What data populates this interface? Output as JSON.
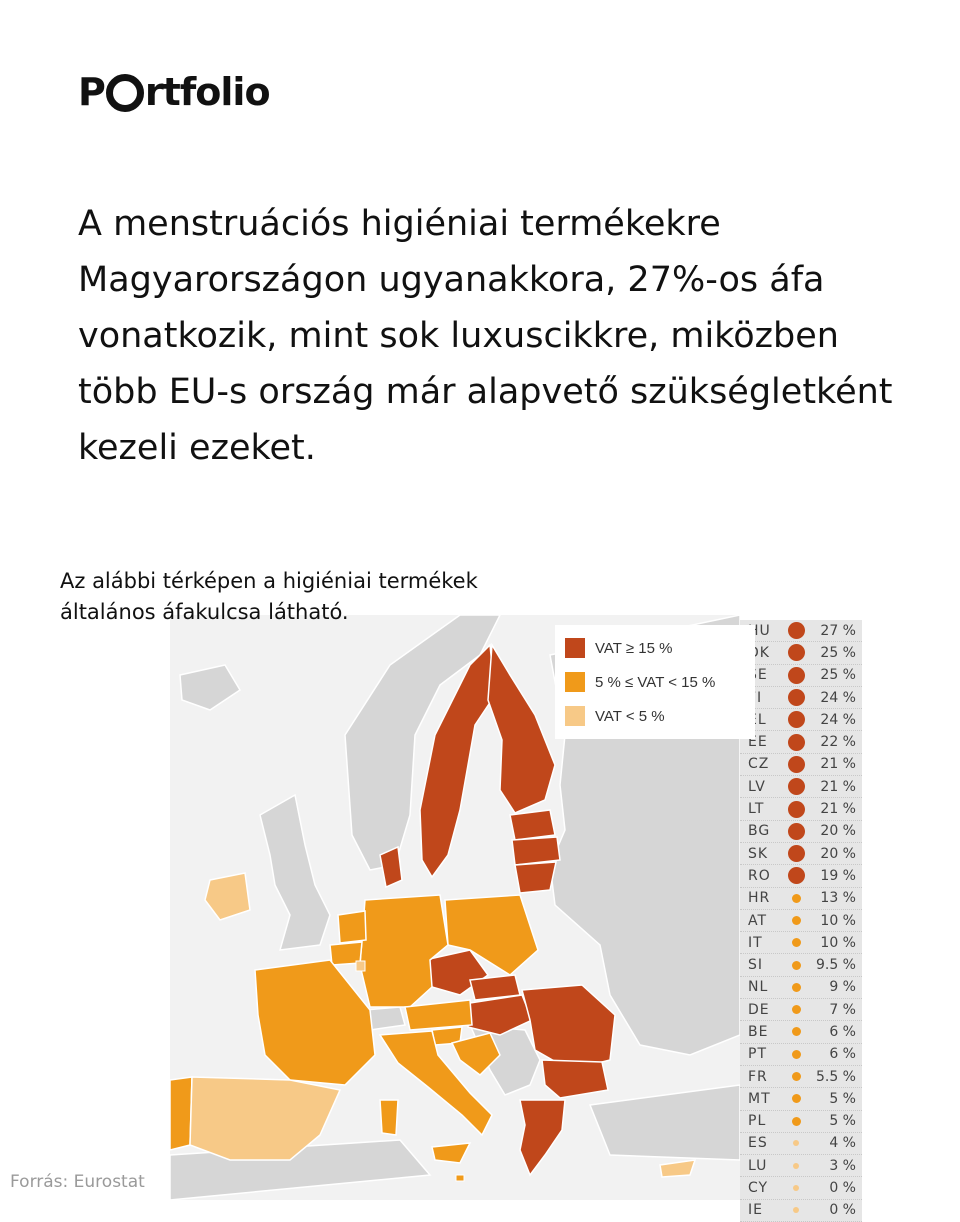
{
  "logo": {
    "before": "P",
    "after": "rtfolio"
  },
  "headline": "A menstruációs higiéniai termékekre Magyarországon ugyanakkora, 27%-os áfa vonatkozik, mint sok luxuscikkre, miközben több EU-s ország már alapvető szükségletként kezeli ezeket.",
  "subtitle": "Az alábbi térképen a higiéniai termékek általános áfakulcsa látható.",
  "source": "Forrás: Eurostat",
  "colors": {
    "high": "#c0471b",
    "mid": "#f09a1a",
    "low": "#f7c987",
    "non_eu": "#d6d6d6",
    "sea": "#f2f2f2"
  },
  "legend": [
    {
      "label": "VAT ≥ 15 %",
      "level": "high"
    },
    {
      "label": "5 % ≤ VAT < 15 %",
      "level": "mid"
    },
    {
      "label": "VAT < 5 %",
      "level": "low"
    }
  ],
  "ranking": [
    {
      "code": "HU",
      "value": "27 %",
      "level": "high"
    },
    {
      "code": "DK",
      "value": "25 %",
      "level": "high"
    },
    {
      "code": "SE",
      "value": "25 %",
      "level": "high"
    },
    {
      "code": "FI",
      "value": "24 %",
      "level": "high"
    },
    {
      "code": "EL",
      "value": "24 %",
      "level": "high"
    },
    {
      "code": "EE",
      "value": "22 %",
      "level": "high"
    },
    {
      "code": "CZ",
      "value": "21 %",
      "level": "high"
    },
    {
      "code": "LV",
      "value": "21 %",
      "level": "high"
    },
    {
      "code": "LT",
      "value": "21 %",
      "level": "high"
    },
    {
      "code": "BG",
      "value": "20 %",
      "level": "high"
    },
    {
      "code": "SK",
      "value": "20 %",
      "level": "high"
    },
    {
      "code": "RO",
      "value": "19 %",
      "level": "high"
    },
    {
      "code": "HR",
      "value": "13 %",
      "level": "mid"
    },
    {
      "code": "AT",
      "value": "10 %",
      "level": "mid"
    },
    {
      "code": "IT",
      "value": "10 %",
      "level": "mid"
    },
    {
      "code": "SI",
      "value": "9.5 %",
      "level": "mid"
    },
    {
      "code": "NL",
      "value": "9 %",
      "level": "mid"
    },
    {
      "code": "DE",
      "value": "7 %",
      "level": "mid"
    },
    {
      "code": "BE",
      "value": "6 %",
      "level": "mid"
    },
    {
      "code": "PT",
      "value": "6 %",
      "level": "mid"
    },
    {
      "code": "FR",
      "value": "5.5 %",
      "level": "mid"
    },
    {
      "code": "MT",
      "value": "5 %",
      "level": "mid"
    },
    {
      "code": "PL",
      "value": "5 %",
      "level": "mid"
    },
    {
      "code": "ES",
      "value": "4 %",
      "level": "low"
    },
    {
      "code": "LU",
      "value": "3 %",
      "level": "low"
    },
    {
      "code": "CY",
      "value": "0 %",
      "level": "low"
    },
    {
      "code": "IE",
      "value": "0 %",
      "level": "low"
    }
  ]
}
